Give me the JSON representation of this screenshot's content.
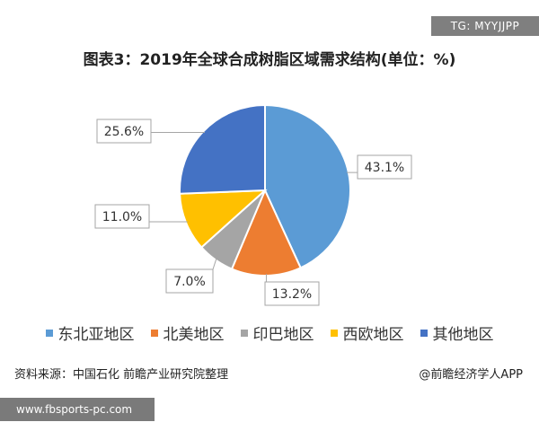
{
  "badge": {
    "text": "TG: MYYJJPP"
  },
  "chart_data": {
    "type": "pie",
    "title": "图表3：2019年全球合成树脂区域需求结构(单位：%)",
    "unit": "%",
    "slices": [
      {
        "name": "东北亚地区",
        "value": 43.1,
        "label": "43.1%",
        "color": "#5b9bd5"
      },
      {
        "name": "北美地区",
        "value": 13.2,
        "label": "13.2%",
        "color": "#ed7d31"
      },
      {
        "name": "印巴地区",
        "value": 7.0,
        "label": "7.0%",
        "color": "#a5a5a5"
      },
      {
        "name": "西欧地区",
        "value": 11.0,
        "label": "11.0%",
        "color": "#ffc000"
      },
      {
        "name": "其他地区",
        "value": 25.6,
        "label": "25.6%",
        "color": "#4472c4"
      }
    ],
    "legend_position": "bottom"
  },
  "source": {
    "text": "资料来源：中国石化 前瞻产业研究院整理"
  },
  "credit": {
    "text": "@前瞻经济学人APP"
  },
  "footer": {
    "text": "www.fbsports-pc.com"
  }
}
